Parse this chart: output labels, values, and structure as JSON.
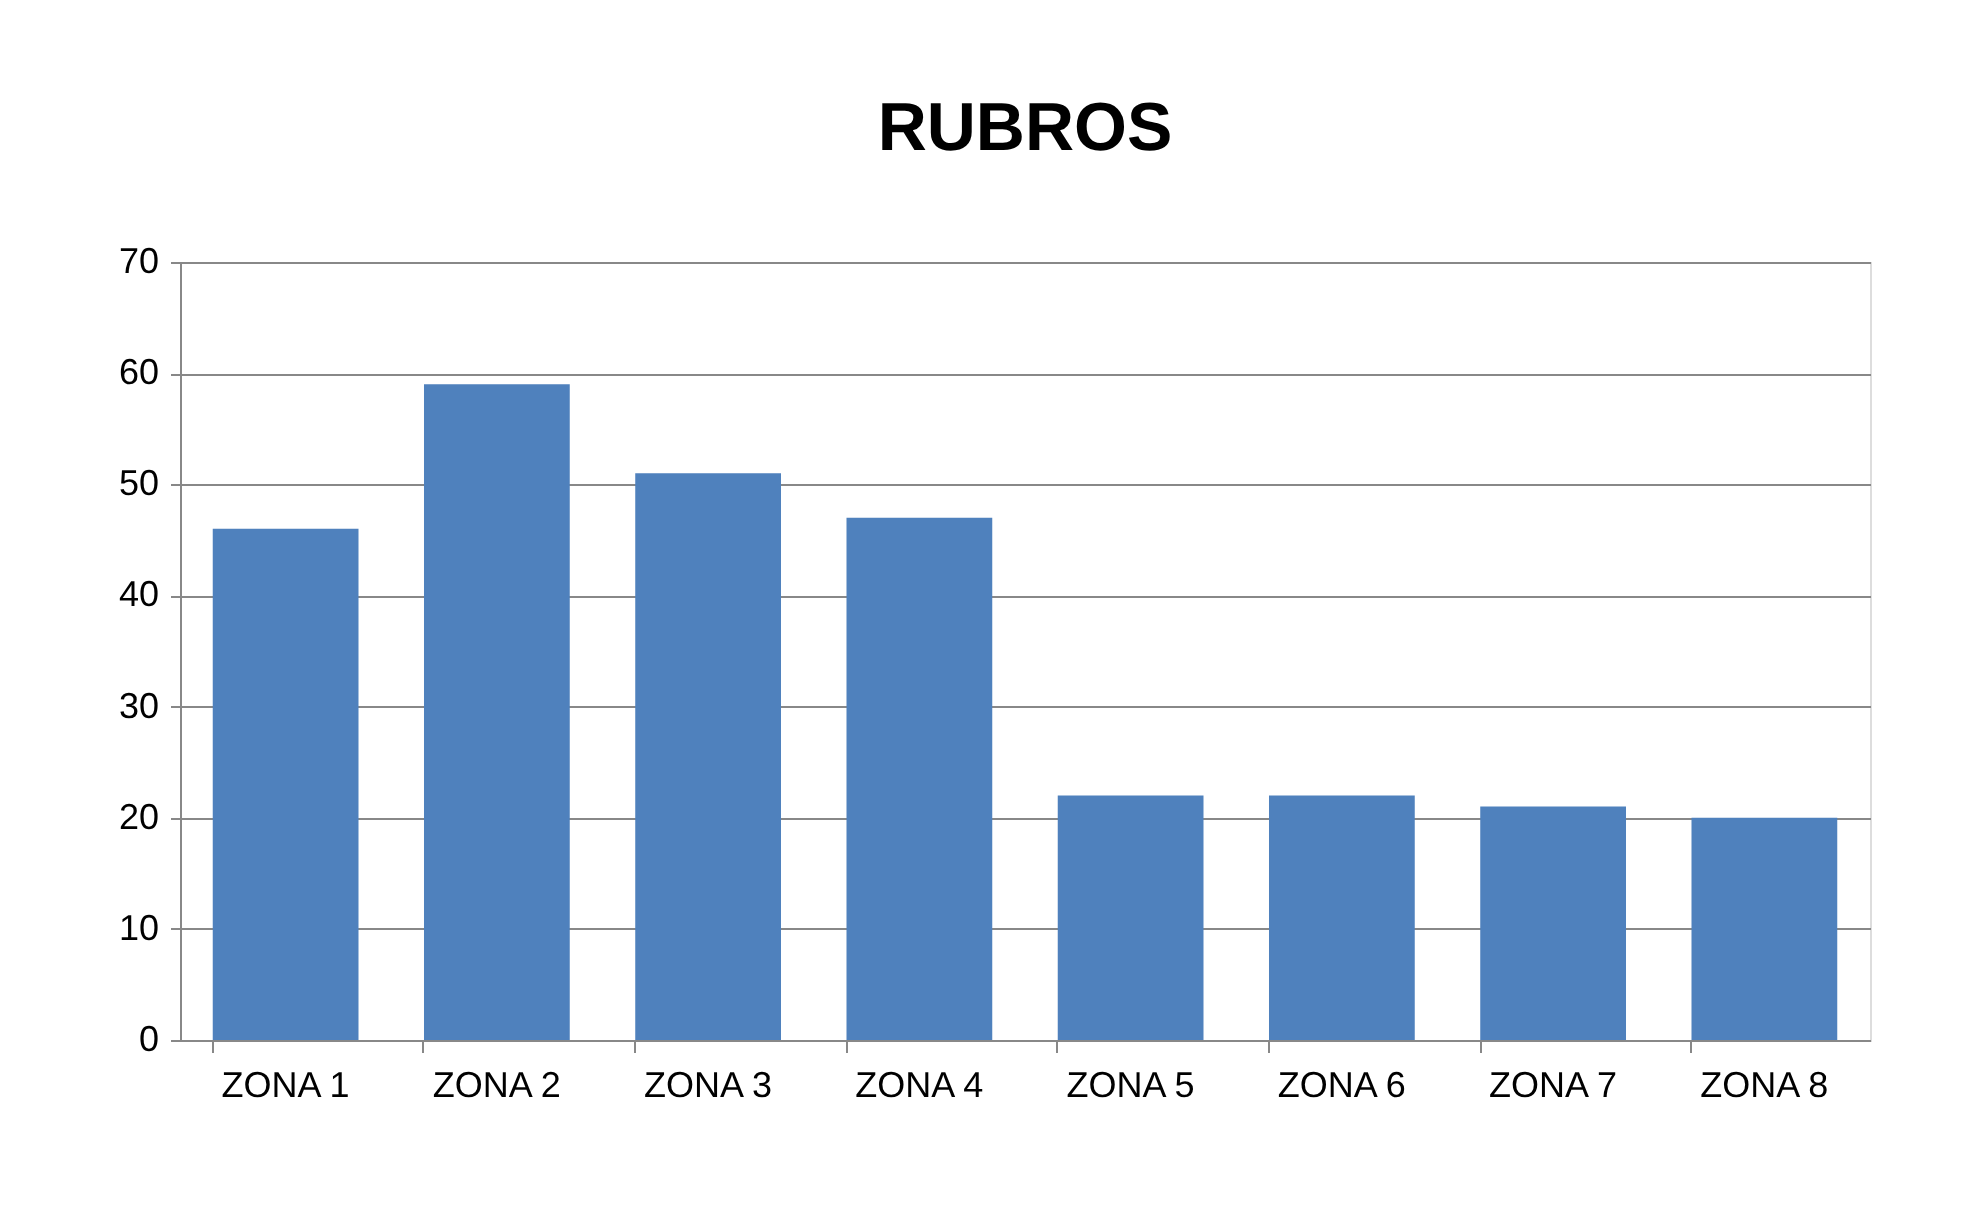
{
  "chart_data": {
    "type": "bar",
    "title": "RUBROS",
    "categories": [
      "ZONA 1",
      "ZONA 2",
      "ZONA 3",
      "ZONA 4",
      "ZONA 5",
      "ZONA 6",
      "ZONA 7",
      "ZONA 8"
    ],
    "values": [
      46,
      59,
      51,
      47,
      22,
      22,
      21,
      20
    ],
    "color": "#4f81bd",
    "ylim": [
      0,
      70
    ],
    "yticks": [
      0,
      10,
      20,
      30,
      40,
      50,
      60,
      70
    ],
    "grid": "y"
  }
}
